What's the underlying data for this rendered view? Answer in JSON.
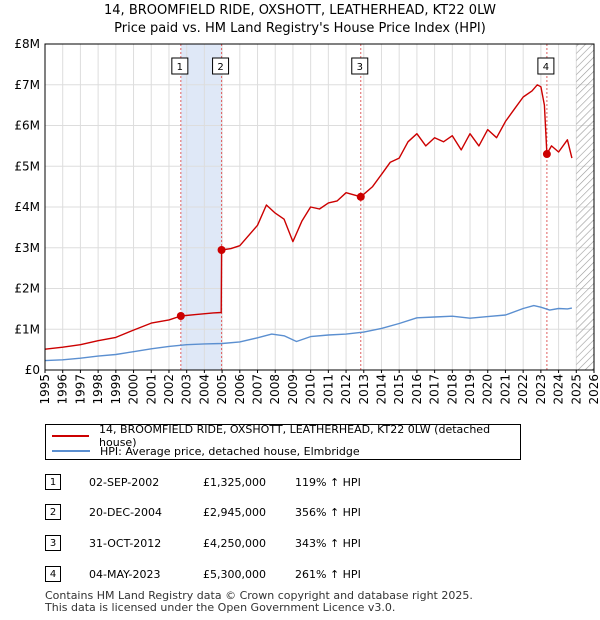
{
  "title_line1": "14, BROOMFIELD RIDE, OXSHOTT, LEATHERHEAD, KT22 0LW",
  "title_line2": "Price paid vs. HM Land Registry's House Price Index (HPI)",
  "chart_data": {
    "type": "line",
    "y_tick_labels": [
      "£0",
      "£1M",
      "£2M",
      "£3M",
      "£4M",
      "£5M",
      "£6M",
      "£7M",
      "£8M"
    ],
    "y_ticks": [
      0,
      1000000,
      2000000,
      3000000,
      4000000,
      5000000,
      6000000,
      7000000,
      8000000
    ],
    "ylim": [
      0,
      8000000
    ],
    "xlim": [
      1995,
      2026
    ],
    "x_ticks": [
      "1995",
      "1996",
      "1997",
      "1998",
      "1999",
      "2000",
      "2001",
      "2002",
      "2003",
      "2004",
      "2005",
      "2006",
      "2007",
      "2008",
      "2009",
      "2010",
      "2011",
      "2012",
      "2013",
      "2014",
      "2015",
      "2016",
      "2017",
      "2018",
      "2019",
      "2020",
      "2021",
      "2022",
      "2023",
      "2024",
      "2025",
      "2026"
    ],
    "hatch_from": 2025.0,
    "colors": {
      "property": "#cc0000",
      "hpi": "#5b8fd0",
      "shade": "#dfe8f7",
      "vline": "#e06060"
    },
    "series": [
      {
        "name": "14, BROOMFIELD RIDE, OXSHOTT, LEATHERHEAD, KT22 0LW (detached house)",
        "x": [
          1995.0,
          1996.0,
          1997.0,
          1998.0,
          1999.0,
          2000.0,
          2001.0,
          2002.0,
          2002.67,
          2003.5,
          2004.5,
          2004.95,
          2004.97,
          2005.5,
          2006.0,
          2007.0,
          2007.5,
          2008.0,
          2008.5,
          2009.0,
          2009.5,
          2010.0,
          2010.5,
          2011.0,
          2011.5,
          2012.0,
          2012.83,
          2013.5,
          2014.0,
          2014.5,
          2015.0,
          2015.5,
          2016.0,
          2016.5,
          2017.0,
          2017.5,
          2018.0,
          2018.5,
          2019.0,
          2019.5,
          2020.0,
          2020.5,
          2021.0,
          2021.5,
          2022.0,
          2022.5,
          2022.8,
          2023.0,
          2023.2,
          2023.34,
          2023.6,
          2024.0,
          2024.5,
          2024.75
        ],
        "y": [
          510000,
          560000,
          620000,
          720000,
          800000,
          980000,
          1150000,
          1230000,
          1325000,
          1360000,
          1400000,
          1410000,
          2945000,
          2980000,
          3050000,
          3550000,
          4050000,
          3850000,
          3700000,
          3150000,
          3650000,
          4000000,
          3950000,
          4100000,
          4150000,
          4350000,
          4250000,
          4500000,
          4800000,
          5100000,
          5200000,
          5600000,
          5800000,
          5500000,
          5700000,
          5600000,
          5750000,
          5400000,
          5800000,
          5500000,
          5900000,
          5700000,
          6100000,
          6400000,
          6700000,
          6850000,
          7000000,
          6950000,
          6500000,
          5300000,
          5500000,
          5350000,
          5650000,
          5200000
        ]
      },
      {
        "name": "HPI: Average price, detached house, Elmbridge",
        "x": [
          1995.0,
          1996.0,
          1997.0,
          1998.0,
          1999.0,
          2000.0,
          2001.0,
          2002.0,
          2003.0,
          2004.0,
          2005.0,
          2006.0,
          2007.0,
          2007.8,
          2008.5,
          2009.2,
          2010.0,
          2011.0,
          2012.0,
          2013.0,
          2014.0,
          2015.0,
          2016.0,
          2017.0,
          2018.0,
          2019.0,
          2020.0,
          2021.0,
          2022.0,
          2022.6,
          2023.0,
          2023.5,
          2024.0,
          2024.5,
          2024.75
        ],
        "y": [
          230000,
          250000,
          290000,
          340000,
          380000,
          450000,
          520000,
          580000,
          620000,
          640000,
          650000,
          690000,
          790000,
          880000,
          840000,
          700000,
          820000,
          860000,
          880000,
          930000,
          1020000,
          1140000,
          1280000,
          1300000,
          1320000,
          1270000,
          1310000,
          1350000,
          1510000,
          1580000,
          1540000,
          1470000,
          1510000,
          1500000,
          1520000
        ]
      }
    ],
    "markers": [
      {
        "label": "1",
        "x": 2002.67,
        "y": 1325000
      },
      {
        "label": "2",
        "x": 2004.97,
        "y": 2945000
      },
      {
        "label": "3",
        "x": 2012.83,
        "y": 4250000
      },
      {
        "label": "4",
        "x": 2023.34,
        "y": 5300000
      }
    ],
    "shaded_spans": [
      [
        2002.67,
        2004.97
      ],
      [
        2012.83,
        2012.83
      ],
      [
        2023.34,
        2023.34
      ]
    ]
  },
  "legend": {
    "property_label": "14, BROOMFIELD RIDE, OXSHOTT, LEATHERHEAD, KT22 0LW (detached house)",
    "hpi_label": "HPI: Average price, detached house, Elmbridge"
  },
  "transactions": [
    {
      "num": "1",
      "date": "02-SEP-2002",
      "price": "£1,325,000",
      "hpi": "119% ↑ HPI"
    },
    {
      "num": "2",
      "date": "20-DEC-2004",
      "price": "£2,945,000",
      "hpi": "356% ↑ HPI"
    },
    {
      "num": "3",
      "date": "31-OCT-2012",
      "price": "£4,250,000",
      "hpi": "343% ↑ HPI"
    },
    {
      "num": "4",
      "date": "04-MAY-2023",
      "price": "£5,300,000",
      "hpi": "261% ↑ HPI"
    }
  ],
  "footer_line1": "Contains HM Land Registry data © Crown copyright and database right 2025.",
  "footer_line2": "This data is licensed under the Open Government Licence v3.0."
}
